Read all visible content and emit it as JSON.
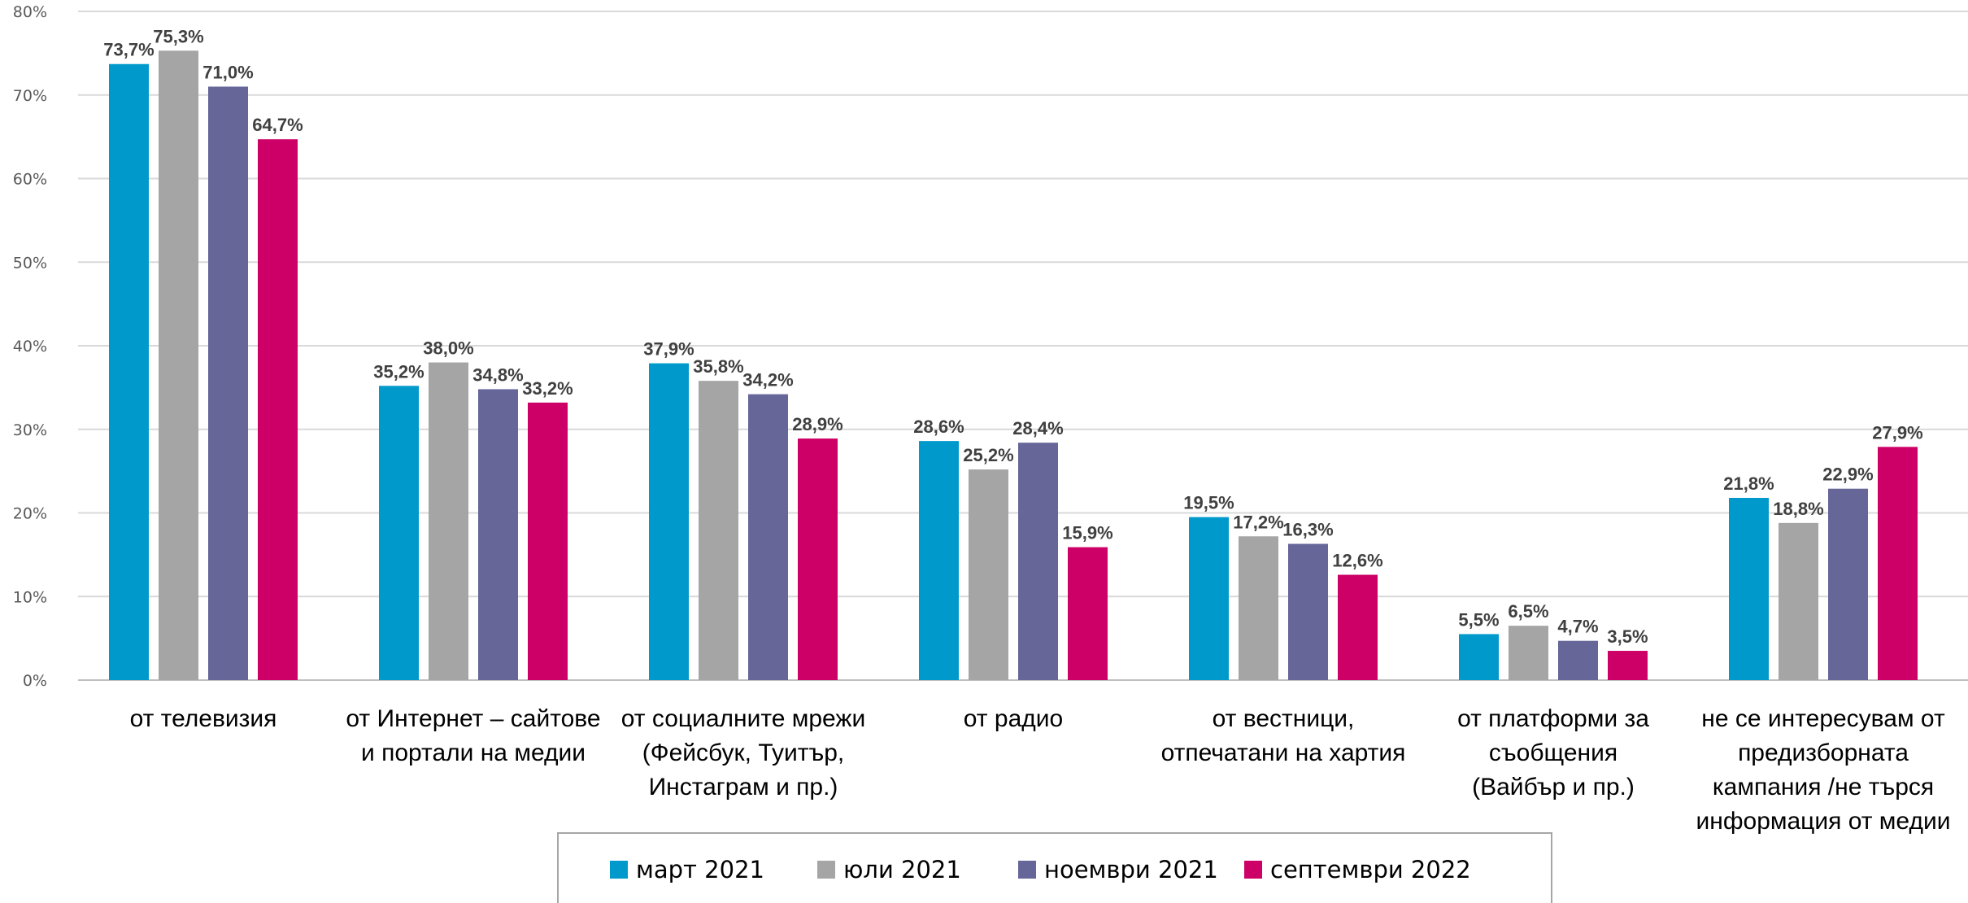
{
  "chart_data": {
    "type": "bar",
    "ylim": [
      0,
      80
    ],
    "yticks": [
      "0%",
      "10%",
      "20%",
      "30%",
      "40%",
      "50%",
      "60%",
      "70%",
      "80%"
    ],
    "grid": true,
    "legend_position": "bottom",
    "categories": [
      [
        "от телевизия"
      ],
      [
        "от Интернет – сайтове",
        "и портали на медии"
      ],
      [
        "от социалните мрежи",
        "(Фейсбук, Туитър,",
        "Инстаграм и пр.)"
      ],
      [
        "от радио"
      ],
      [
        "от вестници,",
        "отпечатани на хартия"
      ],
      [
        "от платформи за",
        "съобщения",
        "(Вайбър и пр.)"
      ],
      [
        "не се интересувам от",
        "предизборната",
        "кампания /не търся",
        "информация от медии"
      ]
    ],
    "series": [
      {
        "name": "март 2021",
        "color": "#0099CC",
        "values": [
          73.7,
          35.2,
          37.9,
          28.6,
          19.5,
          5.5,
          21.8
        ],
        "labels": [
          "73,7%",
          "35,2%",
          "37,9%",
          "28,6%",
          "19,5%",
          "5,5%",
          "21,8%"
        ]
      },
      {
        "name": "юли 2021",
        "color": "#A5A5A5",
        "values": [
          75.3,
          38.0,
          35.8,
          25.2,
          17.2,
          6.5,
          18.8
        ],
        "labels": [
          "75,3%",
          "38,0%",
          "35,8%",
          "25,2%",
          "17,2%",
          "6,5%",
          "18,8%"
        ]
      },
      {
        "name": "ноември 2021",
        "color": "#666699",
        "values": [
          71.0,
          34.8,
          34.2,
          28.4,
          16.3,
          4.7,
          22.9
        ],
        "labels": [
          "71,0%",
          "34,8%",
          "34,2%",
          "28,4%",
          "16,3%",
          "4,7%",
          "22,9%"
        ]
      },
      {
        "name": "септември 2022",
        "color": "#CC0066",
        "values": [
          64.7,
          33.2,
          28.9,
          15.9,
          12.6,
          3.5,
          27.9
        ],
        "labels": [
          "64,7%",
          "33,2%",
          "28,9%",
          "15,9%",
          "12,6%",
          "3,5%",
          "27,9%"
        ]
      }
    ]
  }
}
